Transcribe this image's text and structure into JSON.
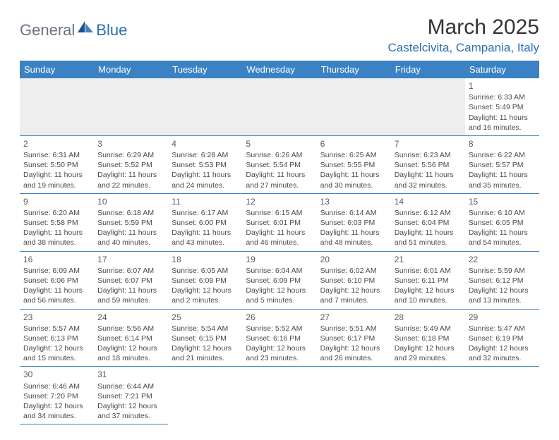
{
  "logo": {
    "part1": "General",
    "part2": "Blue"
  },
  "title": "March 2025",
  "location": "Castelcivita, Campania, Italy",
  "weekdays": [
    "Sunday",
    "Monday",
    "Tuesday",
    "Wednesday",
    "Thursday",
    "Friday",
    "Saturday"
  ],
  "colors": {
    "header_bg": "#3a82c4",
    "header_text": "#ffffff",
    "accent": "#2d6fb3",
    "logo_gray": "#6b7280",
    "blank_bg": "#eeeeee",
    "cell_text": "#4a4a4a"
  },
  "weeks": [
    [
      null,
      null,
      null,
      null,
      null,
      null,
      {
        "n": "1",
        "sr": "6:33 AM",
        "ss": "5:49 PM",
        "dl1": "11 hours",
        "dl2": "and 16 minutes."
      }
    ],
    [
      {
        "n": "2",
        "sr": "6:31 AM",
        "ss": "5:50 PM",
        "dl1": "11 hours",
        "dl2": "and 19 minutes."
      },
      {
        "n": "3",
        "sr": "6:29 AM",
        "ss": "5:52 PM",
        "dl1": "11 hours",
        "dl2": "and 22 minutes."
      },
      {
        "n": "4",
        "sr": "6:28 AM",
        "ss": "5:53 PM",
        "dl1": "11 hours",
        "dl2": "and 24 minutes."
      },
      {
        "n": "5",
        "sr": "6:26 AM",
        "ss": "5:54 PM",
        "dl1": "11 hours",
        "dl2": "and 27 minutes."
      },
      {
        "n": "6",
        "sr": "6:25 AM",
        "ss": "5:55 PM",
        "dl1": "11 hours",
        "dl2": "and 30 minutes."
      },
      {
        "n": "7",
        "sr": "6:23 AM",
        "ss": "5:56 PM",
        "dl1": "11 hours",
        "dl2": "and 32 minutes."
      },
      {
        "n": "8",
        "sr": "6:22 AM",
        "ss": "5:57 PM",
        "dl1": "11 hours",
        "dl2": "and 35 minutes."
      }
    ],
    [
      {
        "n": "9",
        "sr": "6:20 AM",
        "ss": "5:58 PM",
        "dl1": "11 hours",
        "dl2": "and 38 minutes."
      },
      {
        "n": "10",
        "sr": "6:18 AM",
        "ss": "5:59 PM",
        "dl1": "11 hours",
        "dl2": "and 40 minutes."
      },
      {
        "n": "11",
        "sr": "6:17 AM",
        "ss": "6:00 PM",
        "dl1": "11 hours",
        "dl2": "and 43 minutes."
      },
      {
        "n": "12",
        "sr": "6:15 AM",
        "ss": "6:01 PM",
        "dl1": "11 hours",
        "dl2": "and 46 minutes."
      },
      {
        "n": "13",
        "sr": "6:14 AM",
        "ss": "6:03 PM",
        "dl1": "11 hours",
        "dl2": "and 48 minutes."
      },
      {
        "n": "14",
        "sr": "6:12 AM",
        "ss": "6:04 PM",
        "dl1": "11 hours",
        "dl2": "and 51 minutes."
      },
      {
        "n": "15",
        "sr": "6:10 AM",
        "ss": "6:05 PM",
        "dl1": "11 hours",
        "dl2": "and 54 minutes."
      }
    ],
    [
      {
        "n": "16",
        "sr": "6:09 AM",
        "ss": "6:06 PM",
        "dl1": "11 hours",
        "dl2": "and 56 minutes."
      },
      {
        "n": "17",
        "sr": "6:07 AM",
        "ss": "6:07 PM",
        "dl1": "11 hours",
        "dl2": "and 59 minutes."
      },
      {
        "n": "18",
        "sr": "6:05 AM",
        "ss": "6:08 PM",
        "dl1": "12 hours",
        "dl2": "and 2 minutes."
      },
      {
        "n": "19",
        "sr": "6:04 AM",
        "ss": "6:09 PM",
        "dl1": "12 hours",
        "dl2": "and 5 minutes."
      },
      {
        "n": "20",
        "sr": "6:02 AM",
        "ss": "6:10 PM",
        "dl1": "12 hours",
        "dl2": "and 7 minutes."
      },
      {
        "n": "21",
        "sr": "6:01 AM",
        "ss": "6:11 PM",
        "dl1": "12 hours",
        "dl2": "and 10 minutes."
      },
      {
        "n": "22",
        "sr": "5:59 AM",
        "ss": "6:12 PM",
        "dl1": "12 hours",
        "dl2": "and 13 minutes."
      }
    ],
    [
      {
        "n": "23",
        "sr": "5:57 AM",
        "ss": "6:13 PM",
        "dl1": "12 hours",
        "dl2": "and 15 minutes."
      },
      {
        "n": "24",
        "sr": "5:56 AM",
        "ss": "6:14 PM",
        "dl1": "12 hours",
        "dl2": "and 18 minutes."
      },
      {
        "n": "25",
        "sr": "5:54 AM",
        "ss": "6:15 PM",
        "dl1": "12 hours",
        "dl2": "and 21 minutes."
      },
      {
        "n": "26",
        "sr": "5:52 AM",
        "ss": "6:16 PM",
        "dl1": "12 hours",
        "dl2": "and 23 minutes."
      },
      {
        "n": "27",
        "sr": "5:51 AM",
        "ss": "6:17 PM",
        "dl1": "12 hours",
        "dl2": "and 26 minutes."
      },
      {
        "n": "28",
        "sr": "5:49 AM",
        "ss": "6:18 PM",
        "dl1": "12 hours",
        "dl2": "and 29 minutes."
      },
      {
        "n": "29",
        "sr": "5:47 AM",
        "ss": "6:19 PM",
        "dl1": "12 hours",
        "dl2": "and 32 minutes."
      }
    ],
    [
      {
        "n": "30",
        "sr": "6:46 AM",
        "ss": "7:20 PM",
        "dl1": "12 hours",
        "dl2": "and 34 minutes."
      },
      {
        "n": "31",
        "sr": "6:44 AM",
        "ss": "7:21 PM",
        "dl1": "12 hours",
        "dl2": "and 37 minutes."
      },
      null,
      null,
      null,
      null,
      null
    ]
  ]
}
